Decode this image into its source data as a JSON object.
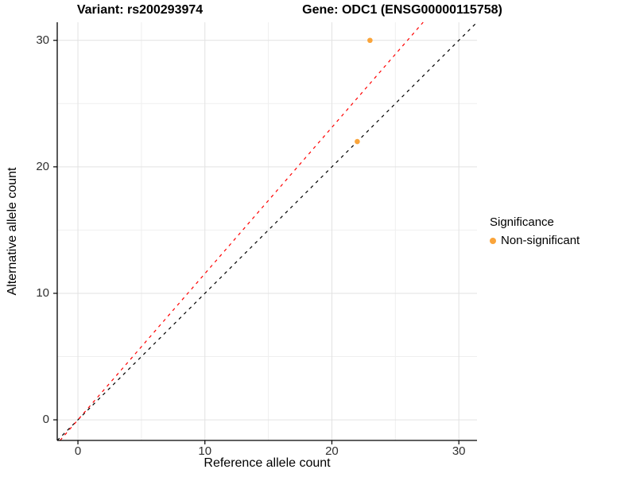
{
  "titles": {
    "variant": "Variant: rs200293974",
    "gene": "Gene: ODC1 (ENSG00000115758)"
  },
  "axes": {
    "x": {
      "label": "Reference allele count",
      "tick_labels": [
        "0",
        "10",
        "20",
        "30"
      ]
    },
    "y": {
      "label": "Alternative allele count",
      "tick_labels": [
        "0",
        "10",
        "20",
        "30"
      ]
    }
  },
  "legend": {
    "title": "Significance",
    "items": [
      {
        "label": "Non-significant",
        "color": "#FAA43A"
      }
    ]
  },
  "chart_data": {
    "type": "scatter",
    "title": "Variant: rs200293974   Gene: ODC1 (ENSG00000115758)",
    "xlabel": "Reference allele count",
    "ylabel": "Alternative allele count",
    "xlim": [
      -1.63,
      31.43
    ],
    "ylim": [
      -1.63,
      31.43
    ],
    "x_major_ticks": [
      0,
      10,
      20,
      30
    ],
    "y_major_ticks": [
      0,
      10,
      20,
      30
    ],
    "x_minor_ticks": [
      5,
      15,
      25
    ],
    "y_minor_ticks": [
      5,
      15,
      25
    ],
    "grid": true,
    "legend_position": "right",
    "points": [
      {
        "x": 23,
        "y": 30,
        "group": "Non-significant",
        "color": "#FAA43A"
      },
      {
        "x": 22,
        "y": 22,
        "group": "Non-significant",
        "color": "#FAA43A"
      }
    ],
    "lines": [
      {
        "name": "identity-line",
        "slope": 1.0,
        "intercept": 0,
        "color": "#000000",
        "style": "dashed"
      },
      {
        "name": "alt-ref-ratio-line",
        "slope": 1.156,
        "intercept": 0,
        "color": "#FF0000",
        "style": "dashed"
      }
    ]
  },
  "colors": {
    "background": "#FFFFFF",
    "grid_major": "#E2E2E2",
    "grid_minor": "#EFEFEF",
    "axis_line": "#000000",
    "tick_label": "#303030",
    "point": "#FAA43A",
    "identity_line": "#000000",
    "ratio_line": "#FF0000"
  }
}
